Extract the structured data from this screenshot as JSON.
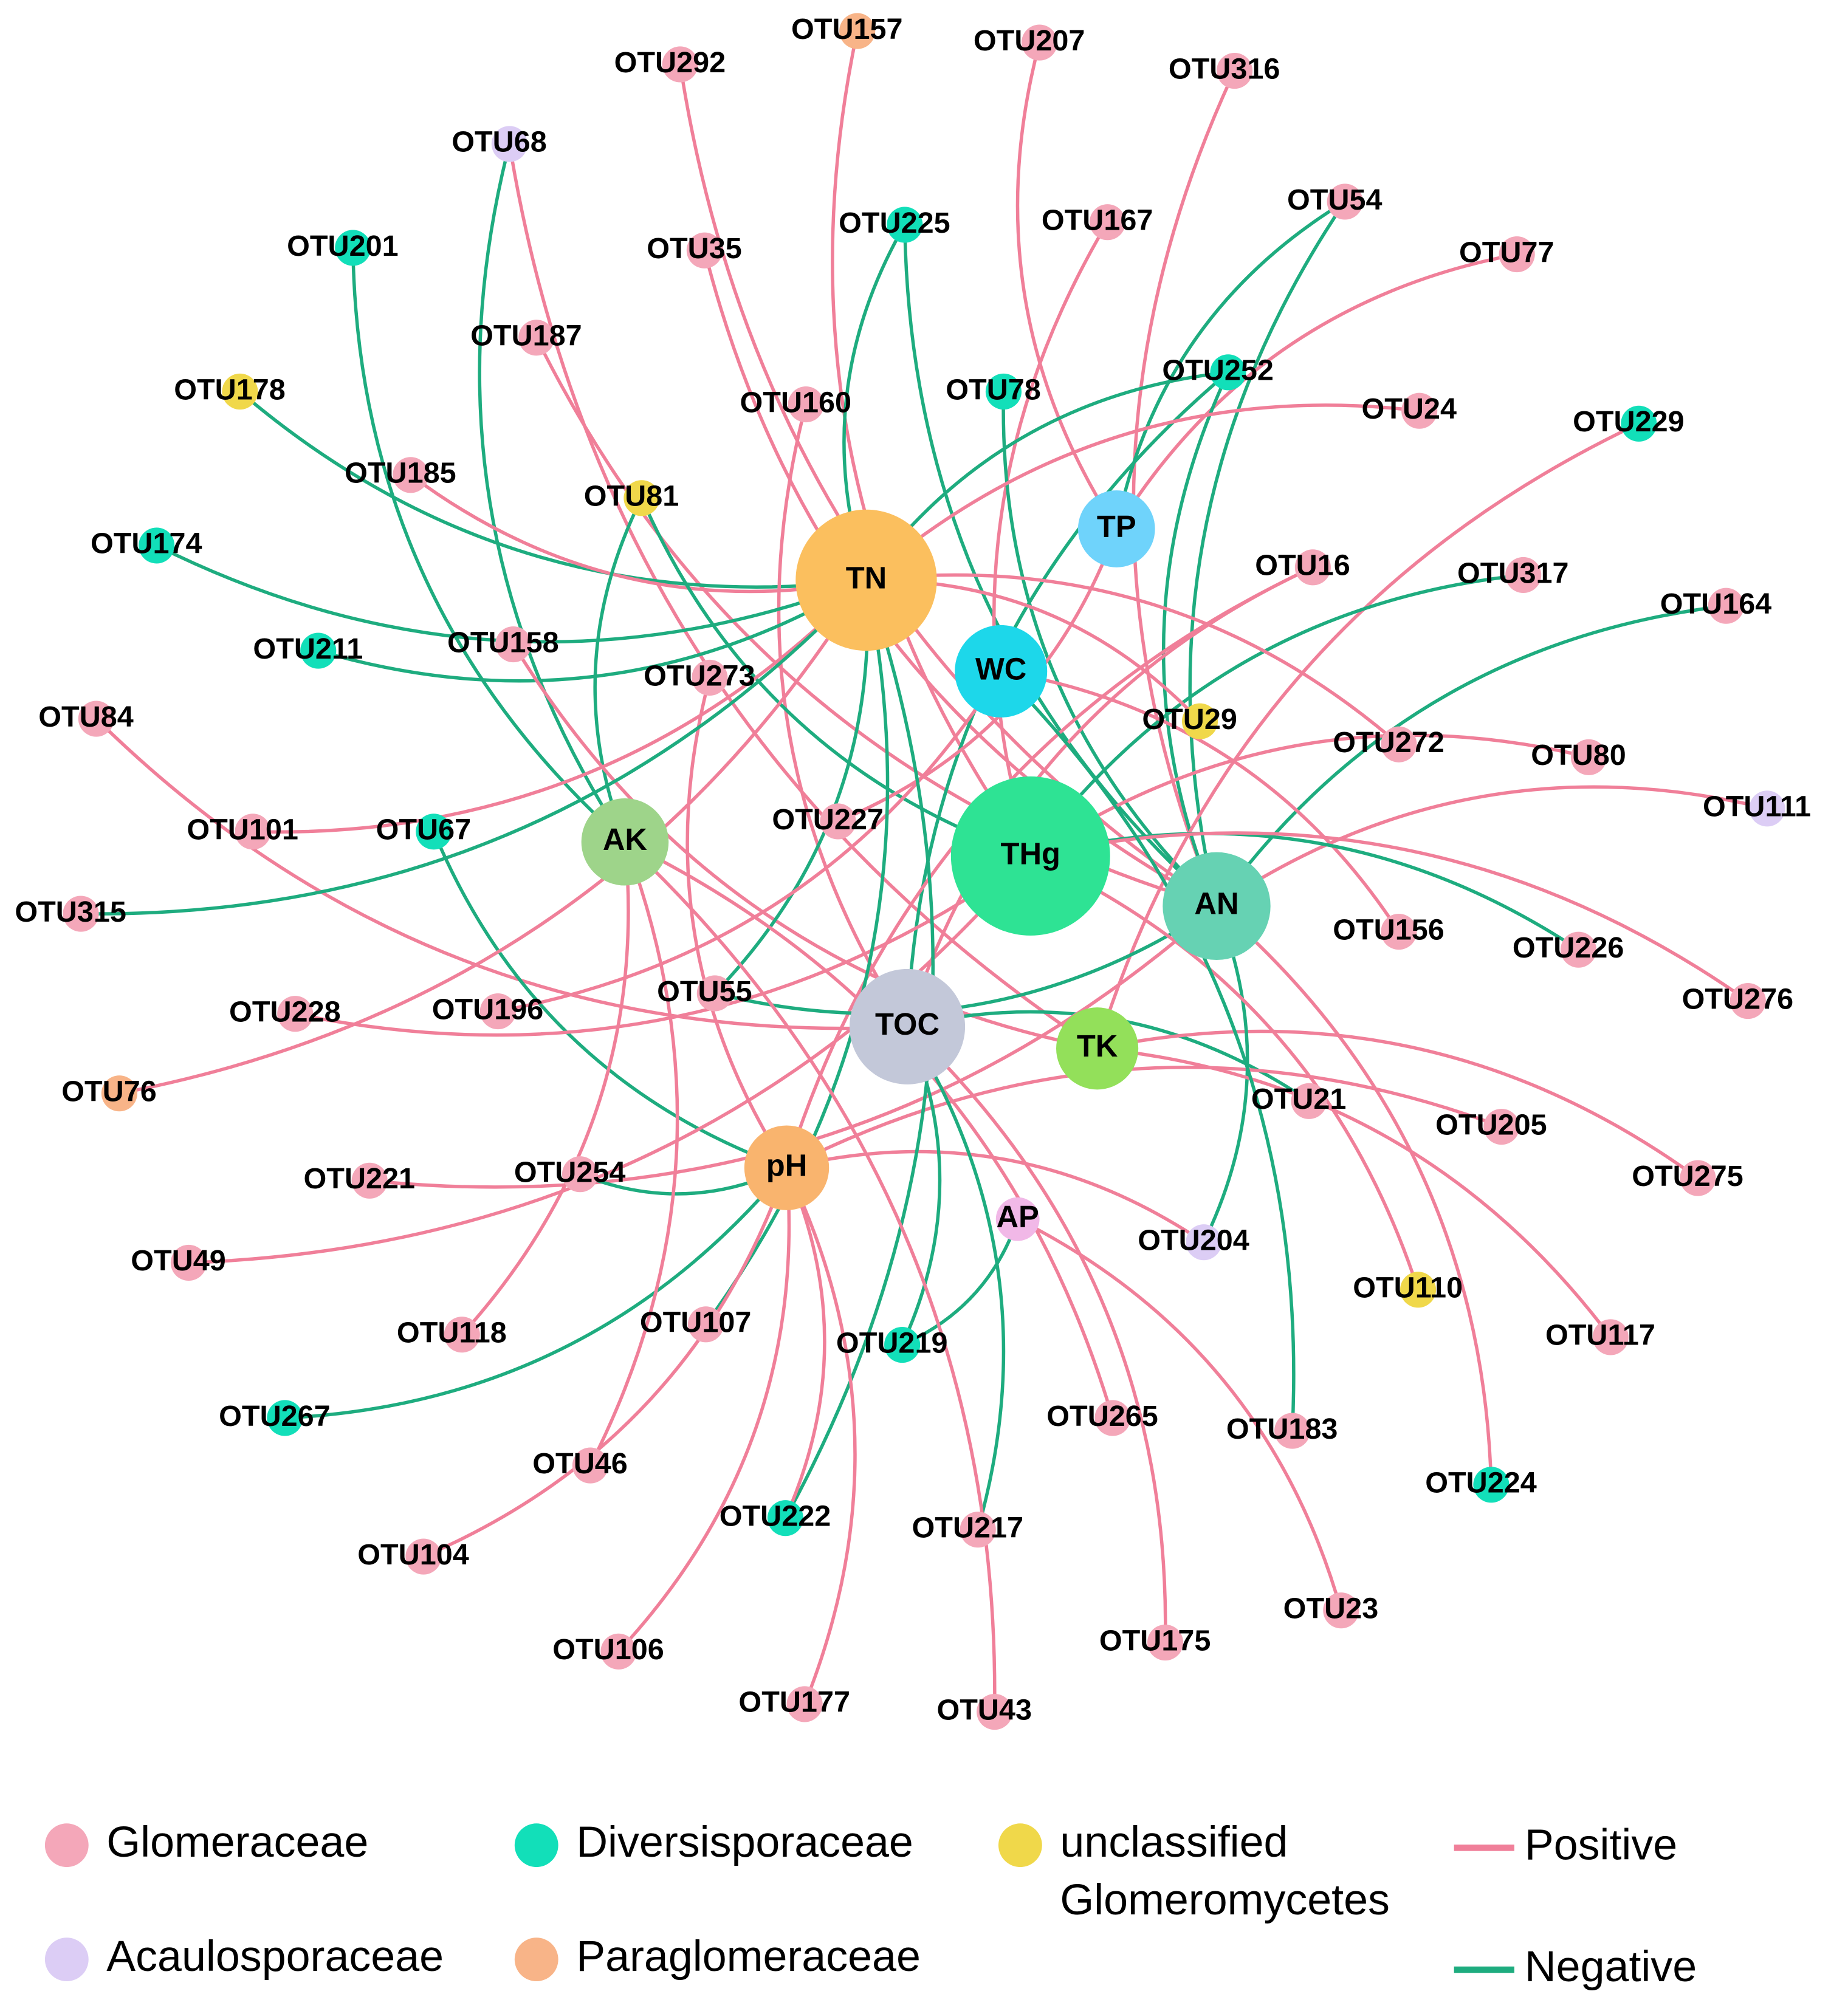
{
  "nodes": {
    "environment": [
      "TN",
      "TP",
      "WC",
      "THg",
      "AN",
      "AK",
      "TOC",
      "TK",
      "pH",
      "AP"
    ],
    "otus": [
      "OTU157",
      "OTU292",
      "OTU207",
      "OTU316",
      "OTU68",
      "OTU225",
      "OTU167",
      "OTU54",
      "OTU201",
      "OTU35",
      "OTU77",
      "OTU187",
      "OTU252",
      "OTU178",
      "OTU160",
      "OTU78",
      "OTU24",
      "OTU229",
      "OTU185",
      "OTU81",
      "OTU174",
      "OTU16",
      "OTU317",
      "OTU164",
      "OTU211",
      "OTU158",
      "OTU273",
      "OTU29",
      "OTU272",
      "OTU80",
      "OTU84",
      "OTU101",
      "OTU67",
      "OTU227",
      "OTU111",
      "OTU315",
      "OTU156",
      "OTU226",
      "OTU55",
      "OTU228",
      "OTU196",
      "OTU276",
      "OTU76",
      "OTU21",
      "OTU205",
      "OTU221",
      "OTU254",
      "OTU275",
      "OTU49",
      "OTU204",
      "OTU110",
      "OTU118",
      "OTU107",
      "OTU219",
      "OTU117",
      "OTU267",
      "OTU265",
      "OTU183",
      "OTU46",
      "OTU224",
      "OTU222",
      "OTU217",
      "OTU104",
      "OTU23",
      "OTU175",
      "OTU106",
      "OTU177",
      "OTU43"
    ]
  },
  "legend": {
    "families": [
      {
        "label": "Glomeraceae"
      },
      {
        "label": "Diversisporaceae"
      },
      {
        "label_lines": [
          "unclassified",
          "Glomeromycetes"
        ]
      },
      {
        "label": "Acaulosporaceae"
      },
      {
        "label": "Paraglomeraceae"
      }
    ],
    "edges": [
      "Positive",
      "Negative"
    ]
  }
}
